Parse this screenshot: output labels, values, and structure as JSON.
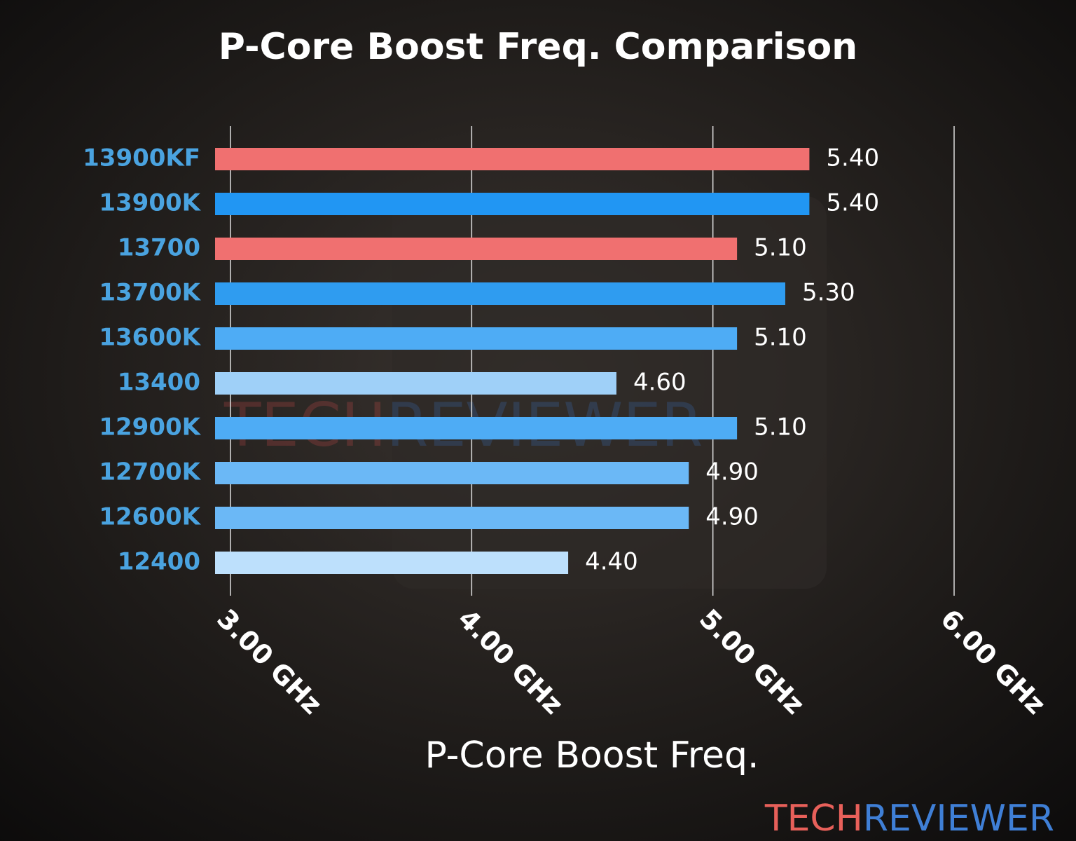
{
  "chart_data": {
    "type": "barh",
    "title": "P-Core Boost Freq. Comparison",
    "x_label": "P-Core Boost Freq.",
    "categories": [
      "13900KF",
      "13900K",
      "13700",
      "13700K",
      "13600K",
      "13400",
      "12900K",
      "12700K",
      "12600K",
      "12400"
    ],
    "values": [
      5.4,
      5.4,
      5.1,
      5.3,
      5.1,
      4.6,
      5.1,
      4.9,
      4.9,
      4.4
    ],
    "value_labels": [
      "5.40",
      "5.40",
      "5.10",
      "5.30",
      "5.10",
      "4.60",
      "5.10",
      "4.90",
      "4.90",
      "4.40"
    ],
    "colors": [
      "#f07070",
      "#2196f3",
      "#f07070",
      "#2f9cf0",
      "#4eacf5",
      "#9fd0f8",
      "#4eacf5",
      "#6bb8f6",
      "#6bb8f6",
      "#bde0fc"
    ],
    "xlim": [
      2.936,
      6.0
    ],
    "xticks": [
      {
        "value": 3,
        "label": "3.00 GHz"
      },
      {
        "value": 4,
        "label": "4.00 GHz"
      },
      {
        "value": 5,
        "label": "5.00 GHz"
      },
      {
        "value": 6,
        "label": "6.00 GHz"
      }
    ],
    "grid": true
  },
  "watermark": [
    "TECH",
    "REVIEWER"
  ]
}
